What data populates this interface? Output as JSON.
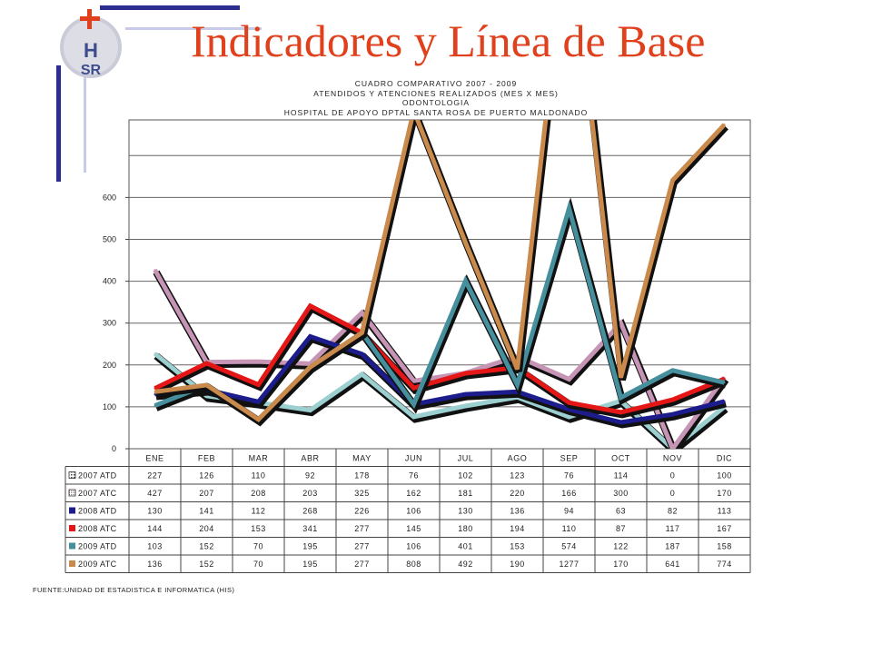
{
  "slide": {
    "title": "Indicadores y Línea de Base",
    "logo_text": "HSR",
    "source": "FUENTE:UNIDAD DE ESTADISTICA E INFORMATICA (HIS)"
  },
  "colors": {
    "title": "#e0401c",
    "deco_dark": "#2b2e8f",
    "deco_light": "#c8cbe8"
  },
  "chart_data": {
    "type": "line",
    "title_lines": [
      "CUADRO COMPARATIVO 2007 - 2009",
      "ATENDIDOS Y ATENCIONES  REALIZADOS (MES X MES)",
      "ODONTOLOGIA",
      "HOSPITAL DE APOYO DPTAL SANTA ROSA DE PUERTO MALDONADO"
    ],
    "categories": [
      "ENE",
      "FEB",
      "MAR",
      "ABR",
      "MAY",
      "JUN",
      "JUL",
      "AGO",
      "SEP",
      "OCT",
      "NOV",
      "DIC"
    ],
    "y_ticks": [
      0,
      100,
      200,
      300,
      400,
      500,
      600
    ],
    "ylim": [
      0,
      780
    ],
    "grid": true,
    "series": [
      {
        "name": "2007 ATD",
        "color": "#9ccfd0",
        "marker": "square-pattern",
        "values": [
          227,
          126,
          110,
          92,
          178,
          76,
          102,
          123,
          76,
          114,
          0,
          100
        ]
      },
      {
        "name": "2007 ATC",
        "color": "#c695b5",
        "marker": "dotted-square",
        "values": [
          427,
          207,
          208,
          203,
          325,
          162,
          181,
          220,
          166,
          300,
          0,
          170
        ]
      },
      {
        "name": "2008 ATD",
        "color": "#1c1c8c",
        "marker": "square",
        "values": [
          130,
          141,
          112,
          268,
          226,
          106,
          130,
          136,
          94,
          63,
          82,
          113
        ]
      },
      {
        "name": "2008 ATC",
        "color": "#e41616",
        "marker": "square",
        "values": [
          144,
          204,
          153,
          341,
          277,
          145,
          180,
          194,
          110,
          87,
          117,
          167
        ]
      },
      {
        "name": "2009 ATD",
        "color": "#46909e",
        "marker": "square",
        "values": [
          103,
          152,
          70,
          195,
          277,
          106,
          401,
          153,
          574,
          122,
          187,
          158
        ]
      },
      {
        "name": "2009 ATC",
        "color": "#c98a4c",
        "marker": "square",
        "values": [
          136,
          152,
          70,
          195,
          277,
          808,
          492,
          190,
          1277,
          170,
          641,
          774
        ]
      }
    ]
  }
}
